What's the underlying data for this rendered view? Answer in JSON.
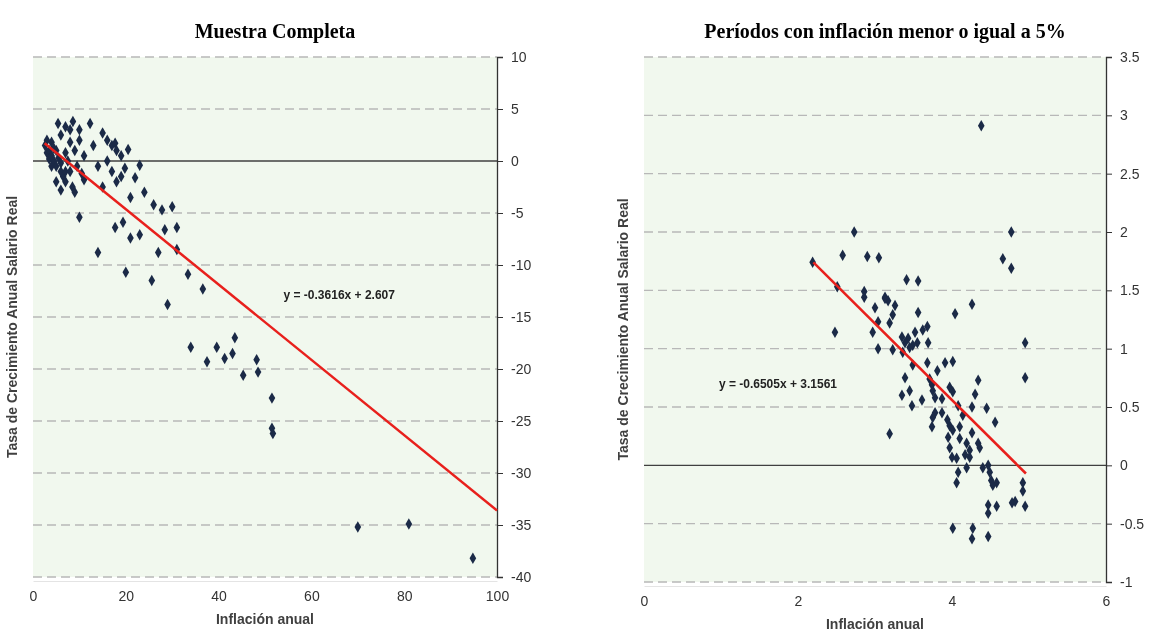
{
  "chart_data": [
    {
      "type": "scatter",
      "title": "Muestra Completa",
      "xlabel": "Inflación anual",
      "ylabel": "Tasa de Crecimiento Anual Salario Real",
      "xlim": [
        0,
        100
      ],
      "xticks": [
        0,
        20,
        40,
        60,
        80,
        100
      ],
      "ylim": [
        -40,
        10
      ],
      "yticks": [
        -40,
        -35,
        -30,
        -25,
        -20,
        -15,
        -10,
        -5,
        0,
        5,
        10
      ],
      "grid": "y",
      "ref_lines": [
        {
          "axis": "y",
          "value": 0,
          "color": "#404040"
        }
      ],
      "annotations": [
        "y = -0.3616x + 2.607"
      ],
      "series": [
        {
          "marker": "diamond",
          "color": "#1b2a47",
          "x": [
            2.6,
            3,
            3,
            3.5,
            3.5,
            4,
            4,
            4,
            4.5,
            4.5,
            5,
            5,
            5,
            5.4,
            5.5,
            6,
            6,
            6,
            6,
            6.5,
            7,
            7,
            7,
            7,
            7.5,
            8,
            8,
            8,
            8.5,
            8.6,
            9,
            9,
            9.5,
            10,
            10,
            10,
            10.5,
            11,
            11,
            12.3,
            13,
            14,
            14,
            15,
            15,
            16,
            16,
            17,
            17,
            17.7,
            17.7,
            18,
            18,
            19,
            19,
            19.4,
            19.8,
            20,
            20.5,
            21,
            21,
            22,
            23,
            23,
            24,
            25.6,
            26,
            27,
            27.8,
            28.4,
            29,
            30,
            31,
            31,
            33.4,
            36.6,
            34,
            37.5,
            39.6,
            41.3,
            43,
            43.5,
            45.3,
            48.2,
            48.5,
            51.5,
            51.5,
            51.7,
            70,
            81,
            94.8
          ],
          "values": [
            1.5,
            0.8,
            2,
            1,
            0.2,
            0.5,
            1.8,
            -0.5,
            0,
            1.2,
            -0.5,
            1,
            -2,
            3.6,
            0.3,
            -1,
            2.5,
            -0.2,
            -2.8,
            -1.5,
            3.3,
            -2,
            0.8,
            -1,
            0,
            3,
            -1,
            1.8,
            -2.5,
            3.8,
            1,
            -3,
            -0.5,
            3,
            2,
            -5.4,
            -1.2,
            0.5,
            -1.8,
            3.6,
            1.5,
            -0.5,
            -8.8,
            2.7,
            -2.5,
            2,
            0,
            1.5,
            -1,
            1.7,
            -6.4,
            -2,
            1,
            0.5,
            -1.5,
            -5.9,
            -0.7,
            -10.7,
            1.1,
            -7.4,
            -3.5,
            -1.6,
            -0.4,
            -7.1,
            -3,
            -11.5,
            -4.2,
            -8.8,
            -4.7,
            -6.6,
            -13.8,
            -4.4,
            -6.4,
            -8.5,
            -10.9,
            -12.3,
            -17.9,
            -19.3,
            -17.9,
            -19,
            -18.5,
            -17,
            -20.6,
            -19.1,
            -20.3,
            -22.8,
            -25.7,
            -26.2,
            -35.2,
            -34.9,
            -38.2
          ]
        },
        {
          "type": "line",
          "color": "#e8201c",
          "x": [
            2.5,
            100
          ],
          "values": [
            1.7,
            -33.6
          ]
        }
      ]
    },
    {
      "type": "scatter",
      "title": "Períodos con inflación menor o igual a 5%",
      "xlabel": "Inflación anual",
      "ylabel": "Tasa de Crecimiento Anual Salario Real",
      "xlim": [
        0,
        6
      ],
      "xticks": [
        0,
        2,
        4,
        6
      ],
      "ylim": [
        -1,
        3.5
      ],
      "yticks": [
        -1,
        -0.5,
        0,
        0.5,
        1,
        1.5,
        2,
        2.5,
        3,
        3.5
      ],
      "grid": "y",
      "ref_lines": [
        {
          "axis": "y",
          "value": 0,
          "color": "#404040"
        }
      ],
      "annotations": [
        "y = -0.6505x + 3.1561"
      ],
      "series": [
        {
          "marker": "diamond",
          "color": "#1b2a47",
          "x": [
            4.38,
            2.19,
            2.58,
            2.73,
            2.9,
            3.05,
            2.51,
            2.86,
            2.86,
            3.41,
            3.56,
            3.13,
            3.17,
            3.26,
            4.26,
            3.0,
            3.13,
            3.56,
            4.04,
            3.23,
            3.04,
            3.19,
            3.68,
            3.62,
            3.52,
            2.48,
            2.97,
            3.35,
            3.43,
            3.39,
            3.55,
            3.69,
            3.49,
            3.45,
            3.04,
            3.23,
            3.36,
            3.49,
            3.68,
            3.91,
            4.01,
            3.81,
            3.71,
            3.39,
            4.34,
            3.74,
            3.97,
            3.45,
            3.35,
            3.75,
            4.01,
            4.3,
            3.61,
            3.48,
            3.78,
            3.87,
            4.08,
            4.26,
            4.45,
            3.78,
            3.87,
            3.75,
            3.94,
            4.14,
            4.56,
            3.74,
            3.97,
            4.01,
            4.1,
            4.26,
            3.19,
            3.95,
            4.1,
            3.97,
            4.19,
            4.34,
            4.23,
            4.36,
            4.0,
            4.06,
            4.17,
            4.23,
            4.4,
            4.47,
            4.49,
            4.58,
            4.08,
            4.06,
            4.19,
            4.53,
            4.51,
            4.47,
            4.47,
            4.58,
            4.01,
            4.27,
            4.26,
            4.47,
            4.66,
            4.77,
            4.77,
            4.95,
            4.95,
            4.92,
            4.92,
            4.82,
            4.95,
            4.78
          ],
          "values": [
            2.91,
            1.74,
            1.8,
            2.0,
            1.79,
            1.78,
            1.53,
            1.49,
            1.44,
            1.59,
            1.58,
            1.43,
            1.41,
            1.37,
            1.38,
            1.35,
            1.44,
            1.31,
            1.3,
            1.29,
            1.23,
            1.22,
            1.19,
            1.16,
            1.14,
            1.14,
            1.14,
            1.1,
            1.09,
            1.05,
            1.05,
            1.05,
            1.03,
            1.01,
            1.0,
            0.99,
            0.97,
            0.86,
            0.88,
            0.88,
            0.89,
            0.81,
            0.74,
            0.75,
            0.73,
            0.69,
            0.67,
            0.64,
            0.6,
            0.64,
            0.63,
            0.61,
            0.56,
            0.51,
            0.58,
            0.57,
            0.51,
            0.5,
            0.49,
            0.45,
            0.45,
            0.41,
            0.39,
            0.43,
            0.37,
            0.33,
            0.34,
            0.3,
            0.33,
            0.28,
            0.27,
            0.24,
            0.23,
            0.15,
            0.19,
            0.19,
            0.13,
            0.15,
            0.07,
            0.06,
            0.09,
            0.07,
            -0.02,
            0.0,
            -0.06,
            -0.15,
            -0.06,
            -0.15,
            -0.02,
            -0.17,
            -0.13,
            -0.34,
            -0.41,
            -0.35,
            -0.54,
            -0.54,
            -0.63,
            -0.61,
            1.77,
            2.0,
            1.69,
            1.05,
            0.75,
            -0.15,
            -0.22,
            -0.31,
            -0.35,
            -0.32
          ]
        },
        {
          "type": "line",
          "color": "#e8201c",
          "x": [
            2.2,
            4.96
          ],
          "values": [
            1.74,
            -0.07
          ]
        }
      ]
    }
  ]
}
